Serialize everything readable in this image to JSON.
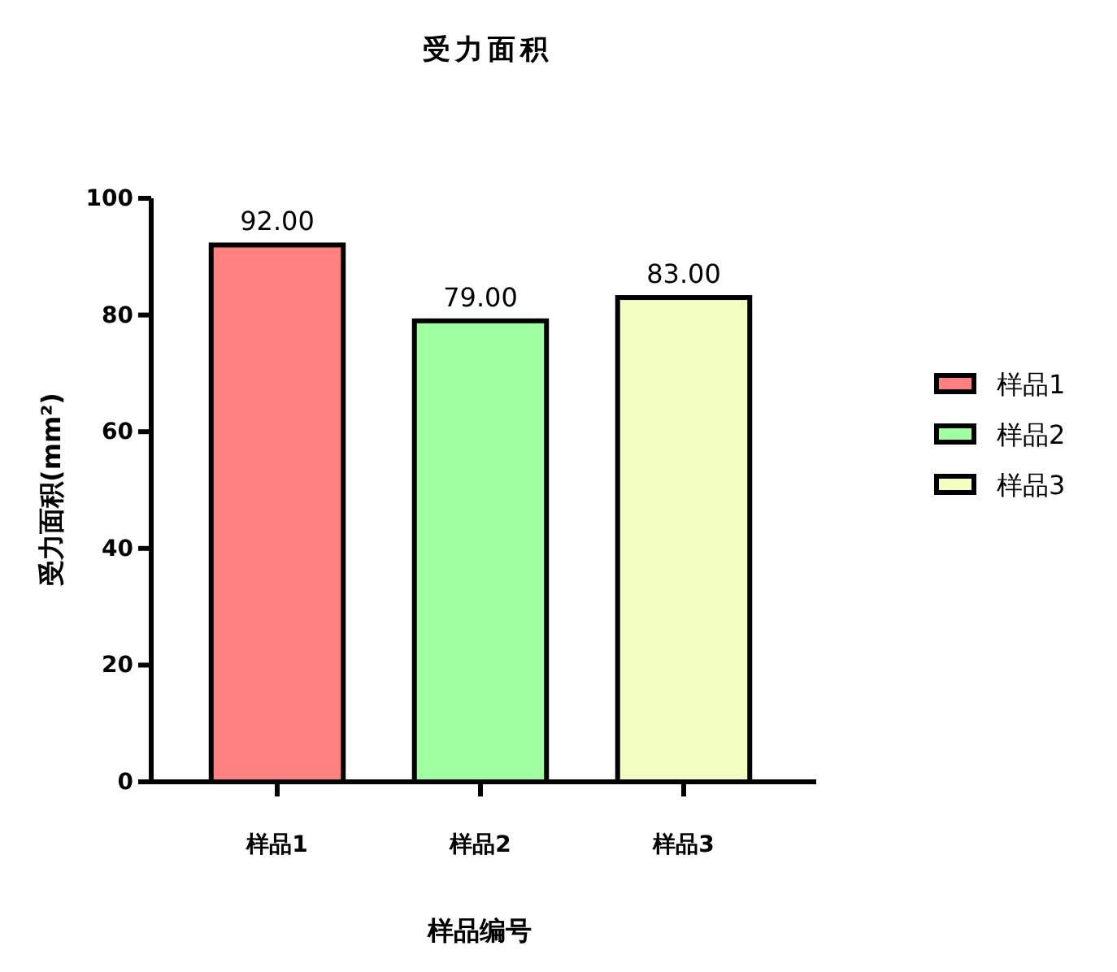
{
  "chart_data": {
    "type": "bar",
    "title": "受力面积",
    "xlabel": "样品编号",
    "ylabel": "受力面积(mm²)",
    "categories": [
      "样品1",
      "样品2",
      "样品3"
    ],
    "series": [
      {
        "name": "样品1",
        "color": "#ff8080",
        "values": [
          92,
          null,
          null
        ],
        "value_labels": [
          "92.00",
          null,
          null
        ]
      },
      {
        "name": "样品2",
        "color": "#a0ffa0",
        "values": [
          null,
          79,
          null
        ],
        "value_labels": [
          null,
          "79.00",
          null
        ]
      },
      {
        "name": "样品3",
        "color": "#f2ffc0",
        "values": [
          null,
          null,
          83
        ],
        "value_labels": [
          null,
          null,
          "83.00"
        ]
      }
    ],
    "ylim": [
      0,
      100
    ],
    "yticks": [
      0,
      20,
      40,
      60,
      80,
      100
    ],
    "grid": false,
    "legend": "right"
  }
}
